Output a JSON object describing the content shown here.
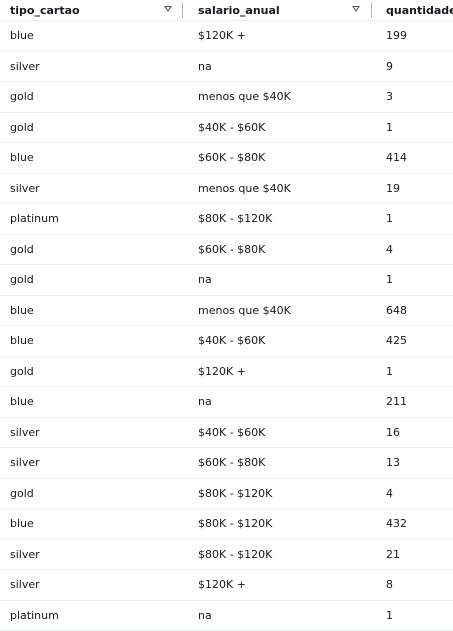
{
  "table": {
    "columns": [
      {
        "label": "tipo_cartao",
        "sort_icon": "sort-down-icon"
      },
      {
        "label": "salario_anual",
        "sort_icon": "sort-down-icon"
      },
      {
        "label": "quantidade"
      }
    ],
    "rows": [
      [
        "blue",
        "$120K +",
        "199"
      ],
      [
        "silver",
        "na",
        "9"
      ],
      [
        "gold",
        "menos que $40K",
        "3"
      ],
      [
        "gold",
        "$40K - $60K",
        "1"
      ],
      [
        "blue",
        "$60K - $80K",
        "414"
      ],
      [
        "silver",
        "menos que $40K",
        "19"
      ],
      [
        "platinum",
        "$80K - $120K",
        "1"
      ],
      [
        "gold",
        "$60K - $80K",
        "4"
      ],
      [
        "gold",
        "na",
        "1"
      ],
      [
        "blue",
        "menos que $40K",
        "648"
      ],
      [
        "blue",
        "$40K - $60K",
        "425"
      ],
      [
        "gold",
        "$120K +",
        "1"
      ],
      [
        "blue",
        "na",
        "211"
      ],
      [
        "silver",
        "$40K - $60K",
        "16"
      ],
      [
        "silver",
        "$60K - $80K",
        "13"
      ],
      [
        "gold",
        "$80K - $120K",
        "4"
      ],
      [
        "blue",
        "$80K - $120K",
        "432"
      ],
      [
        "silver",
        "$80K - $120K",
        "21"
      ],
      [
        "silver",
        "$120K +",
        "8"
      ],
      [
        "platinum",
        "na",
        "1"
      ]
    ]
  },
  "colors": {
    "text": "#16191f",
    "header_separator": "#aab7b8",
    "row_border": "#eaeded"
  }
}
